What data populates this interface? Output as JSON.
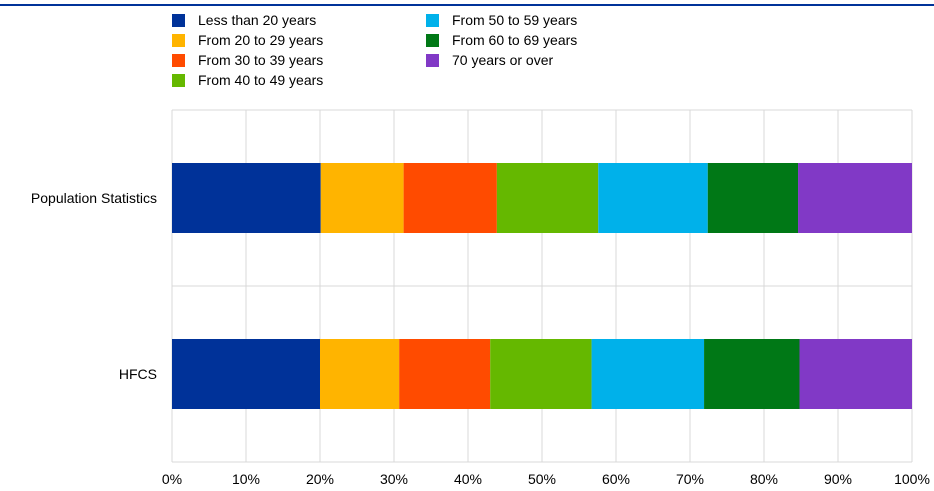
{
  "chart_data": {
    "type": "bar",
    "orientation": "horizontal",
    "stacked": true,
    "percent_axis": true,
    "categories": [
      "Population Statistics",
      "HFCS"
    ],
    "series": [
      {
        "name": "Less than 20 years",
        "color": "#003299",
        "values": [
          20.1,
          20.0
        ]
      },
      {
        "name": "From 20 to 29 years",
        "color": "#FFB400",
        "values": [
          11.2,
          10.7
        ]
      },
      {
        "name": "From 30 to 39 years",
        "color": "#FF4B00",
        "values": [
          12.6,
          12.3
        ]
      },
      {
        "name": "From 40 to 49 years",
        "color": "#65B800",
        "values": [
          13.7,
          13.7
        ]
      },
      {
        "name": "From 50 to 59 years",
        "color": "#00B1EA",
        "values": [
          14.8,
          15.2
        ]
      },
      {
        "name": "From 60 to 69 years",
        "color": "#007816",
        "values": [
          12.2,
          12.9
        ]
      },
      {
        "name": "70 years or over",
        "color": "#8139C6",
        "values": [
          15.4,
          15.2
        ]
      }
    ],
    "xlim": [
      0,
      100
    ],
    "xticks": [
      "0%",
      "10%",
      "20%",
      "30%",
      "40%",
      "50%",
      "60%",
      "70%",
      "80%",
      "90%",
      "100%"
    ],
    "grid": true,
    "legend_position": "top"
  },
  "colors": {
    "top_rule": "#003299",
    "grid": "#d9d9d9"
  }
}
